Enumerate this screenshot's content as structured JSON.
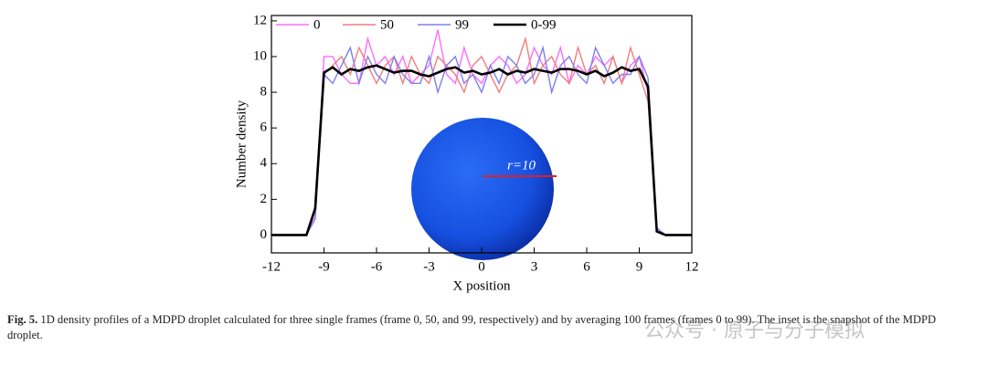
{
  "chart_data": {
    "type": "line",
    "x": [
      -12,
      -11.5,
      -11,
      -10.5,
      -10,
      -9.5,
      -9,
      -8.5,
      -8,
      -7.5,
      -7,
      -6.5,
      -6,
      -5.5,
      -5,
      -4.5,
      -4,
      -3.5,
      -3,
      -2.5,
      -2,
      -1.5,
      -1,
      -0.5,
      0,
      0.5,
      1,
      1.5,
      2,
      2.5,
      3,
      3.5,
      4,
      4.5,
      5,
      5.5,
      6,
      6.5,
      7,
      7.5,
      8,
      8.5,
      9,
      9.5,
      10,
      10.5,
      11,
      11.5,
      12
    ],
    "series": [
      {
        "name": "0",
        "color": "#ff6cff",
        "values": [
          0,
          0,
          0,
          0,
          0,
          1.0,
          10.0,
          10.0,
          9.0,
          8.5,
          8.5,
          11.0,
          9.5,
          10.0,
          9.0,
          10.0,
          8.5,
          9.0,
          9.5,
          11.5,
          9.0,
          8.5,
          10.5,
          9.0,
          8.5,
          9.5,
          10.0,
          9.5,
          8.5,
          9.0,
          10.5,
          9.5,
          9.0,
          10.5,
          8.5,
          9.5,
          9.0,
          10.0,
          9.5,
          10.0,
          8.5,
          9.5,
          10.0,
          8.0,
          0.3,
          0,
          0,
          0,
          0
        ]
      },
      {
        "name": "50",
        "color": "#f07d7d",
        "values": [
          0,
          0,
          0,
          0,
          0,
          1.3,
          9.0,
          9.5,
          10.0,
          9.0,
          10.5,
          9.5,
          8.5,
          9.5,
          10.0,
          8.5,
          10.0,
          9.0,
          8.5,
          10.0,
          9.5,
          9.0,
          8.0,
          9.5,
          10.0,
          9.0,
          8.0,
          9.0,
          9.5,
          11.0,
          8.5,
          9.5,
          10.0,
          9.0,
          8.5,
          10.5,
          9.0,
          9.5,
          8.5,
          10.0,
          8.5,
          10.5,
          9.0,
          7.5,
          0.2,
          0,
          0,
          0,
          0
        ]
      },
      {
        "name": "99",
        "color": "#7f7ff2",
        "values": [
          0,
          0,
          0,
          0,
          0,
          0.9,
          9.0,
          8.5,
          9.5,
          10.5,
          8.5,
          10.0,
          9.0,
          8.5,
          10.0,
          9.0,
          8.5,
          8.5,
          10.0,
          8.0,
          9.5,
          10.0,
          8.5,
          9.0,
          8.0,
          9.5,
          8.5,
          10.0,
          9.5,
          8.5,
          9.0,
          10.5,
          8.0,
          9.5,
          10.0,
          9.0,
          8.5,
          10.5,
          9.5,
          8.5,
          9.0,
          9.0,
          10.0,
          8.8,
          0.4,
          0,
          0,
          0,
          0
        ]
      },
      {
        "name": "0-99",
        "color": "#000000",
        "values": [
          0,
          0,
          0,
          0,
          0,
          1.5,
          9.1,
          9.4,
          9.0,
          9.3,
          9.2,
          9.4,
          9.5,
          9.3,
          9.1,
          9.2,
          9.2,
          9.0,
          8.9,
          9.1,
          9.3,
          9.4,
          9.1,
          9.2,
          9.0,
          9.1,
          9.3,
          9.0,
          9.2,
          9.1,
          9.3,
          9.2,
          9.1,
          9.3,
          9.3,
          9.2,
          9.0,
          9.2,
          8.9,
          9.1,
          9.4,
          9.2,
          9.3,
          8.3,
          0.2,
          0,
          0,
          0,
          0
        ]
      }
    ],
    "xlim": [
      -12,
      12
    ],
    "ylim": [
      -1,
      12.3
    ],
    "xticks": [
      -12,
      -9,
      -6,
      -3,
      0,
      3,
      6,
      9,
      12
    ],
    "yticks": [
      0,
      2,
      4,
      6,
      8,
      10,
      12
    ],
    "xlabel": "X position",
    "ylabel": "Number density",
    "annotation": "r=10"
  },
  "caption": {
    "label": "Fig. 5.",
    "text": "1D density profiles of a MDPD droplet calculated for three single frames (frame 0, 50, and 99, respectively) and by averaging 100 frames (frames 0 to 99). The inset is the snapshot of the MDPD droplet."
  },
  "watermark": "公众号 · 原子与分子模拟"
}
